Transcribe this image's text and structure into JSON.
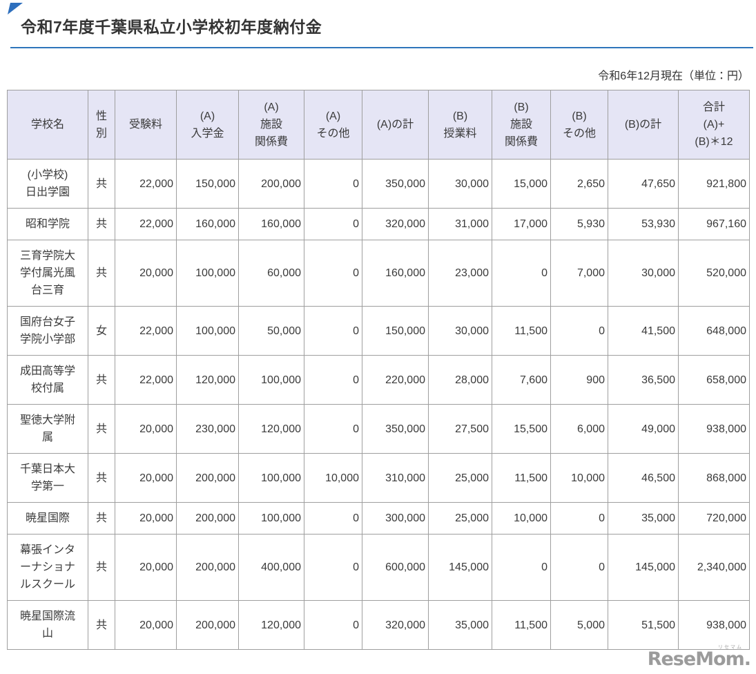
{
  "page": {
    "title": "令和7年度千葉県私立小学校初年度納付金",
    "subtitle": "令和6年12月現在（単位：円）",
    "logo": {
      "text": "ReseMom.",
      "furigana": "リセマム"
    }
  },
  "colors": {
    "accent_blue": "#2e75bb",
    "corner_triangle_blue": "#2e6fbd",
    "table_header_bg": "#e5e5f5",
    "table_border": "#9e9e9e",
    "text": "#3a3a3a",
    "logo_gray": "#9b9b9b"
  },
  "table": {
    "headers": [
      "学校名",
      "性\n別",
      "受験料",
      "(A)\n入学金",
      "(A)\n施設\n関係費",
      "(A)\nその他",
      "(A)の計",
      "(B)\n授業料",
      "(B)\n施設\n関係費",
      "(B)\nその他",
      "(B)の計",
      "合計\n(A)+\n(B)＊12"
    ],
    "rows": [
      [
        "(小学校)\n日出学園",
        "共",
        "22,000",
        "150,000",
        "200,000",
        "0",
        "350,000",
        "30,000",
        "15,000",
        "2,650",
        "47,650",
        "921,800"
      ],
      [
        "昭和学院",
        "共",
        "22,000",
        "160,000",
        "160,000",
        "0",
        "320,000",
        "31,000",
        "17,000",
        "5,930",
        "53,930",
        "967,160"
      ],
      [
        "三育学院大\n学付属光風\n台三育",
        "共",
        "20,000",
        "100,000",
        "60,000",
        "0",
        "160,000",
        "23,000",
        "0",
        "7,000",
        "30,000",
        "520,000"
      ],
      [
        "国府台女子\n学院小学部",
        "女",
        "22,000",
        "100,000",
        "50,000",
        "0",
        "150,000",
        "30,000",
        "11,500",
        "0",
        "41,500",
        "648,000"
      ],
      [
        "成田高等学\n校付属",
        "共",
        "22,000",
        "120,000",
        "100,000",
        "0",
        "220,000",
        "28,000",
        "7,600",
        "900",
        "36,500",
        "658,000"
      ],
      [
        "聖徳大学附\n属",
        "共",
        "20,000",
        "230,000",
        "120,000",
        "0",
        "350,000",
        "27,500",
        "15,500",
        "6,000",
        "49,000",
        "938,000"
      ],
      [
        "千葉日本大\n学第一",
        "共",
        "20,000",
        "200,000",
        "100,000",
        "10,000",
        "310,000",
        "25,000",
        "11,500",
        "10,000",
        "46,500",
        "868,000"
      ],
      [
        "暁星国際",
        "共",
        "20,000",
        "200,000",
        "100,000",
        "0",
        "300,000",
        "25,000",
        "10,000",
        "0",
        "35,000",
        "720,000"
      ],
      [
        "幕張インタ\nーナショナ\nルスクール",
        "共",
        "20,000",
        "200,000",
        "400,000",
        "0",
        "600,000",
        "145,000",
        "0",
        "0",
        "145,000",
        "2,340,000"
      ],
      [
        "暁星国際流\n山",
        "共",
        "20,000",
        "200,000",
        "120,000",
        "0",
        "320,000",
        "35,000",
        "11,500",
        "5,000",
        "51,500",
        "938,000"
      ]
    ]
  }
}
